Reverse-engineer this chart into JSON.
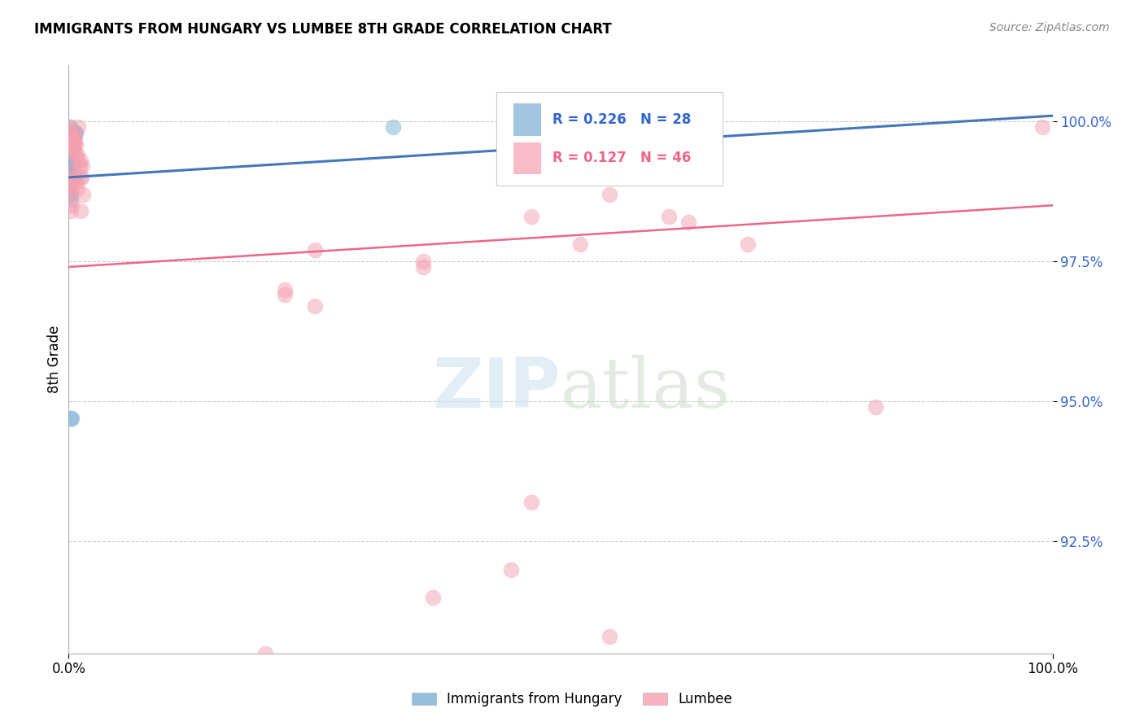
{
  "title": "IMMIGRANTS FROM HUNGARY VS LUMBEE 8TH GRADE CORRELATION CHART",
  "source": "Source: ZipAtlas.com",
  "ylabel": "8th Grade",
  "ytick_labels": [
    "100.0%",
    "97.5%",
    "95.0%",
    "92.5%"
  ],
  "ytick_values": [
    100.0,
    97.5,
    95.0,
    92.5
  ],
  "xlim": [
    0.0,
    100.0
  ],
  "ylim": [
    90.5,
    101.0
  ],
  "blue_color": "#7BAFD4",
  "pink_color": "#F4A0B0",
  "blue_line_color": "#4477BB",
  "pink_line_color": "#EE6688",
  "blue_scatter": [
    [
      0.1,
      99.9
    ],
    [
      0.3,
      99.8
    ],
    [
      0.4,
      99.8
    ],
    [
      0.6,
      99.8
    ],
    [
      0.7,
      99.8
    ],
    [
      0.5,
      99.7
    ],
    [
      0.3,
      99.7
    ],
    [
      0.2,
      99.7
    ],
    [
      0.1,
      99.7
    ],
    [
      0.5,
      99.6
    ],
    [
      0.2,
      99.6
    ],
    [
      0.1,
      99.6
    ],
    [
      0.3,
      99.6
    ],
    [
      0.2,
      99.5
    ],
    [
      0.1,
      99.5
    ],
    [
      0.1,
      99.4
    ],
    [
      0.3,
      99.3
    ],
    [
      0.2,
      99.2
    ],
    [
      0.5,
      99.2
    ],
    [
      0.1,
      99.2
    ],
    [
      0.1,
      99.1
    ],
    [
      0.1,
      99.0
    ],
    [
      0.2,
      99.0
    ],
    [
      0.1,
      98.8
    ],
    [
      0.2,
      98.7
    ],
    [
      0.2,
      98.6
    ],
    [
      0.2,
      94.7
    ],
    [
      0.3,
      94.7
    ],
    [
      33.0,
      99.9
    ]
  ],
  "pink_scatter": [
    [
      0.1,
      99.9
    ],
    [
      1.0,
      99.9
    ],
    [
      99.0,
      99.9
    ],
    [
      0.1,
      99.8
    ],
    [
      0.3,
      99.8
    ],
    [
      0.3,
      99.7
    ],
    [
      0.5,
      99.7
    ],
    [
      0.6,
      99.7
    ],
    [
      0.2,
      99.6
    ],
    [
      0.4,
      99.6
    ],
    [
      0.6,
      99.6
    ],
    [
      0.7,
      99.6
    ],
    [
      0.3,
      99.5
    ],
    [
      0.4,
      99.5
    ],
    [
      0.5,
      99.5
    ],
    [
      0.7,
      99.4
    ],
    [
      0.9,
      99.4
    ],
    [
      0.9,
      99.3
    ],
    [
      1.2,
      99.3
    ],
    [
      1.1,
      99.2
    ],
    [
      1.4,
      99.2
    ],
    [
      0.2,
      99.1
    ],
    [
      0.6,
      99.0
    ],
    [
      0.8,
      99.0
    ],
    [
      1.2,
      99.0
    ],
    [
      1.3,
      99.0
    ],
    [
      0.5,
      98.9
    ],
    [
      0.7,
      98.9
    ],
    [
      0.1,
      98.8
    ],
    [
      0.9,
      98.8
    ],
    [
      0.2,
      98.7
    ],
    [
      1.5,
      98.7
    ],
    [
      0.3,
      98.5
    ],
    [
      1.2,
      98.4
    ],
    [
      0.2,
      98.4
    ],
    [
      55.0,
      99.7
    ],
    [
      55.0,
      98.7
    ],
    [
      47.0,
      98.3
    ],
    [
      61.0,
      98.3
    ],
    [
      63.0,
      98.2
    ],
    [
      52.0,
      97.8
    ],
    [
      69.0,
      97.8
    ],
    [
      25.0,
      97.7
    ],
    [
      36.0,
      97.5
    ],
    [
      36.0,
      97.4
    ],
    [
      22.0,
      97.0
    ],
    [
      22.0,
      96.9
    ],
    [
      25.0,
      96.7
    ],
    [
      82.0,
      94.9
    ],
    [
      47.0,
      93.2
    ],
    [
      45.0,
      92.0
    ],
    [
      37.0,
      91.5
    ],
    [
      55.0,
      90.8
    ],
    [
      20.0,
      90.5
    ]
  ],
  "blue_line_x": [
    0.0,
    100.0
  ],
  "blue_line_y": [
    99.0,
    100.1
  ],
  "pink_line_x": [
    0.0,
    100.0
  ],
  "pink_line_y": [
    97.4,
    98.5
  ]
}
